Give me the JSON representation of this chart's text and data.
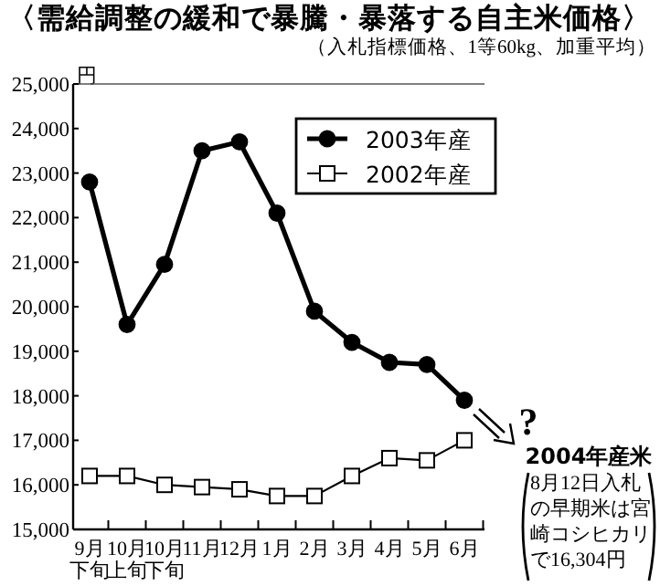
{
  "chart_data": {
    "type": "line",
    "title": "〈需給調整の緩和で暴騰・暴落する自主米価格〉",
    "subtitle": "（入札指標価格、1等60kg、加重平均）",
    "ylabel": "円",
    "categories": [
      "9月下旬",
      "10月上旬",
      "10月下旬",
      "11月",
      "12月",
      "1月",
      "2月",
      "3月",
      "4月",
      "5月",
      "6月"
    ],
    "series": [
      {
        "name": "2003年産",
        "color": "#000000",
        "marker": "circle",
        "values": [
          22800,
          19600,
          20950,
          23500,
          23700,
          22100,
          19900,
          19200,
          18750,
          18700,
          17900
        ]
      },
      {
        "name": "2002年産",
        "color": "#000000",
        "marker": "square",
        "values": [
          16200,
          16200,
          16000,
          15950,
          15900,
          15750,
          15750,
          16200,
          16600,
          16550,
          17000
        ]
      }
    ],
    "ylim": [
      15000,
      25000
    ],
    "yticks": [
      {
        "value": 15000,
        "label": "15,000"
      },
      {
        "value": 16000,
        "label": "16,000"
      },
      {
        "value": 17000,
        "label": "17,000"
      },
      {
        "value": 18000,
        "label": "18,000"
      },
      {
        "value": 19000,
        "label": "19,000"
      },
      {
        "value": 20000,
        "label": "20,000"
      },
      {
        "value": 21000,
        "label": "21,000"
      },
      {
        "value": 22000,
        "label": "22,000"
      },
      {
        "value": 23000,
        "label": "23,000"
      },
      {
        "value": 24000,
        "label": "24,000"
      },
      {
        "value": 25000,
        "label": "25,000"
      }
    ],
    "legend": "top right",
    "annotations": [
      "?",
      "2004年産米",
      "8月12日入札の早期米は宮崎コシヒカリで16,304円"
    ]
  }
}
